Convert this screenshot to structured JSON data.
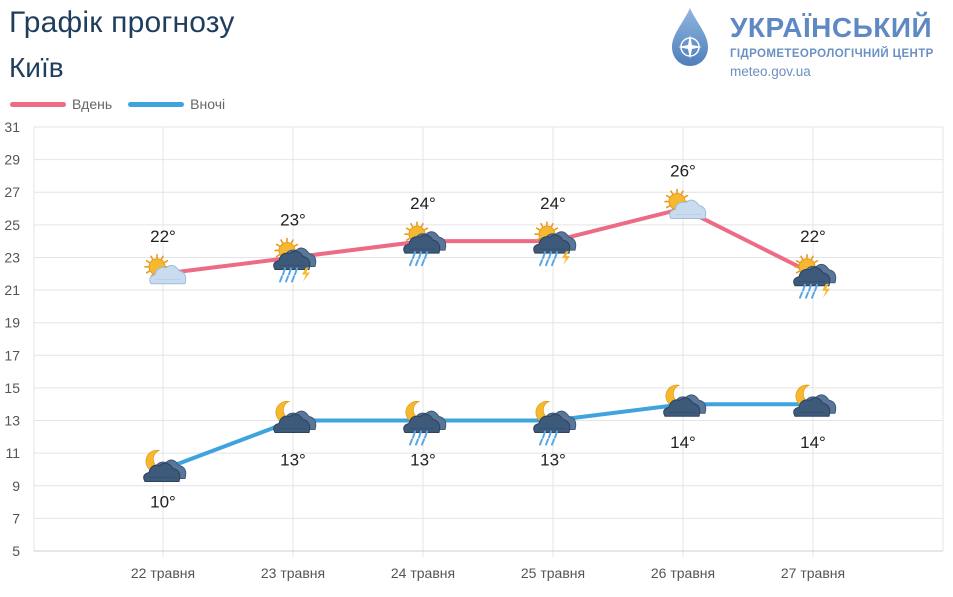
{
  "header": {
    "title": "Графік прогнозу",
    "city": "Київ"
  },
  "logo": {
    "name": "УКРАЇНСЬКИЙ",
    "subtitle": "ГІДРОМЕТЕОРОЛОГІЧНИЙ ЦЕНТР",
    "url": "meteo.gov.ua"
  },
  "legend": {
    "day": "Вдень",
    "night": "Вночі"
  },
  "colors": {
    "day": "#ec6b85",
    "night": "#3fa3de",
    "grid": "#e4e4e4",
    "sun": "#f5b82e",
    "cloud_dark": "#3e5a7a",
    "cloud_light": "#c9dcef",
    "rain": "#5aa7e6"
  },
  "chart_data": {
    "type": "line",
    "categories": [
      "22 травня",
      "23 травня",
      "24 травня",
      "25 травня",
      "26 травня",
      "27 травня"
    ],
    "ylim": [
      5,
      31
    ],
    "yticks": [
      5,
      7,
      9,
      11,
      13,
      15,
      17,
      19,
      21,
      23,
      25,
      27,
      29,
      31
    ],
    "grid": true,
    "legend_position": "top-left",
    "series": [
      {
        "name": "Вдень",
        "values": [
          22,
          23,
          24,
          24,
          26,
          22
        ],
        "labels": [
          "22°",
          "23°",
          "24°",
          "24°",
          "26°",
          "22°"
        ],
        "icons": [
          "sun-cloud-icon",
          "sun-storm-icon",
          "sun-rain-icon",
          "sun-storm-icon",
          "sun-cloud-icon",
          "sun-storm-icon"
        ]
      },
      {
        "name": "Вночі",
        "values": [
          10,
          13,
          13,
          13,
          14,
          14
        ],
        "labels": [
          "10°",
          "13°",
          "13°",
          "13°",
          "14°",
          "14°"
        ],
        "icons": [
          "moon-cloud-icon",
          "moon-cloud-icon",
          "moon-rain-icon",
          "moon-rain-icon",
          "moon-cloud-icon",
          "moon-cloud-icon"
        ]
      }
    ]
  }
}
